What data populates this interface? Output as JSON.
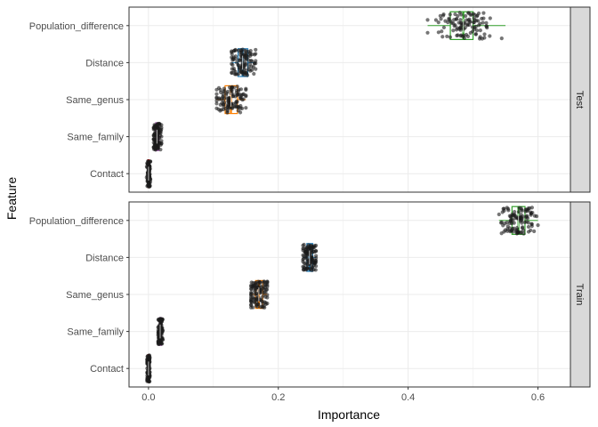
{
  "chart_data": {
    "type": "boxplot-jitter",
    "xlabel": "Importance",
    "ylabel": "Feature",
    "xlim": [
      -0.03,
      0.65
    ],
    "x_ticks": [
      0.0,
      0.2,
      0.4,
      0.6
    ],
    "x_tick_labels": [
      "0.0",
      "0.2",
      "0.4",
      "0.6"
    ],
    "categories": [
      "Population_difference",
      "Distance",
      "Same_genus",
      "Same_family",
      "Contact"
    ],
    "category_colors": {
      "Population_difference": "#33a02c",
      "Distance": "#1f78b4",
      "Same_genus": "#ff7f00",
      "Same_family": "#984ea3",
      "Contact": "#e31a1c"
    },
    "grid": true,
    "facets": [
      {
        "label": "Test",
        "boxes": [
          {
            "feature": "Population_difference",
            "min": 0.43,
            "q1": 0.465,
            "median": 0.485,
            "q3": 0.5,
            "max": 0.55
          },
          {
            "feature": "Distance",
            "min": 0.128,
            "q1": 0.138,
            "median": 0.145,
            "q3": 0.153,
            "max": 0.165
          },
          {
            "feature": "Same_genus",
            "min": 0.105,
            "q1": 0.118,
            "median": 0.127,
            "q3": 0.137,
            "max": 0.15
          },
          {
            "feature": "Same_family",
            "min": 0.008,
            "q1": 0.011,
            "median": 0.013,
            "q3": 0.016,
            "max": 0.02
          },
          {
            "feature": "Contact",
            "min": -0.003,
            "q1": -0.001,
            "median": 0.0,
            "q3": 0.001,
            "max": 0.003
          }
        ]
      },
      {
        "label": "Train",
        "boxes": [
          {
            "feature": "Population_difference",
            "min": 0.54,
            "q1": 0.56,
            "median": 0.57,
            "q3": 0.58,
            "max": 0.6
          },
          {
            "feature": "Distance",
            "min": 0.238,
            "q1": 0.244,
            "median": 0.248,
            "q3": 0.253,
            "max": 0.258
          },
          {
            "feature": "Same_genus",
            "min": 0.158,
            "q1": 0.165,
            "median": 0.17,
            "q3": 0.176,
            "max": 0.183
          },
          {
            "feature": "Same_family",
            "min": 0.015,
            "q1": 0.017,
            "median": 0.018,
            "q3": 0.02,
            "max": 0.022
          },
          {
            "feature": "Contact",
            "min": -0.002,
            "q1": -0.001,
            "median": 0.0,
            "q3": 0.001,
            "max": 0.002
          }
        ]
      }
    ]
  }
}
